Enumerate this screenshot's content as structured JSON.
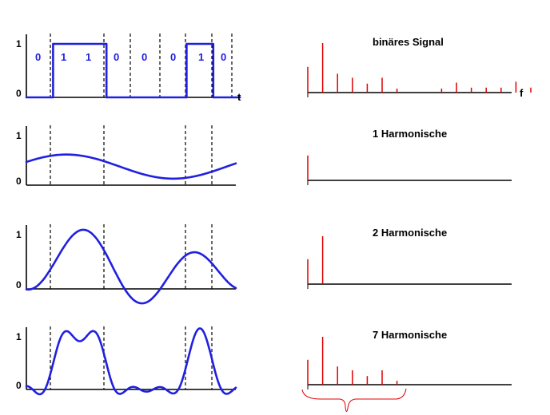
{
  "time_axis_label": "t",
  "freq_axis_label": "f",
  "bits": [
    "0",
    "1",
    "1",
    "0",
    "0",
    "0",
    "1",
    "0"
  ],
  "rows": [
    {
      "id": "binary",
      "title": "binäres Signal",
      "y_high_label": "1",
      "y_low_label": "0",
      "waveform": "square",
      "spectrum": [
        0.52,
        1.0,
        0.38,
        0.3,
        0.18,
        0.3,
        0.08,
        0.0,
        0.0,
        0.08,
        0.2,
        0.1,
        0.1,
        0.1,
        0.22,
        0.1
      ]
    },
    {
      "id": "h1",
      "title": "1 Harmonische",
      "y_high_label": "1",
      "y_low_label": "0",
      "waveform": "harmonic-1",
      "spectrum": [
        0.52
      ]
    },
    {
      "id": "h2",
      "title": "2 Harmonische",
      "y_high_label": "1",
      "y_low_label": "0",
      "waveform": "harmonic-2",
      "spectrum": [
        0.52,
        1.0
      ]
    },
    {
      "id": "h7",
      "title": "7 Harmonische",
      "y_high_label": "1",
      "y_low_label": "0",
      "waveform": "harmonic-7",
      "spectrum": [
        0.52,
        1.0,
        0.38,
        0.3,
        0.18,
        0.3,
        0.08
      ]
    }
  ],
  "colors": {
    "waveform": "#2020e0",
    "spectrum": "#e00000",
    "axis": "#000000"
  }
}
